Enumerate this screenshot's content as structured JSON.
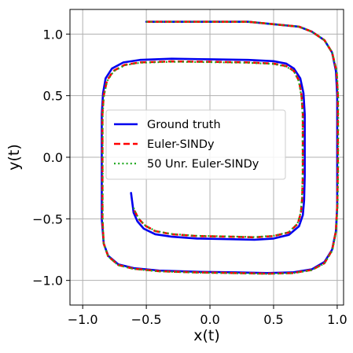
{
  "chart_data": {
    "type": "line",
    "title": "",
    "xlabel": "x(t)",
    "ylabel": "y(t)",
    "xlim": [
      -1.1,
      1.05
    ],
    "ylim": [
      -1.2,
      1.2
    ],
    "xticks": [
      -1.0,
      -0.5,
      0.0,
      0.5,
      1.0
    ],
    "yticks": [
      -1.0,
      -0.5,
      0.0,
      0.5,
      1.0
    ],
    "xtick_labels": [
      "−1.0",
      "−0.5",
      "0.0",
      "0.5",
      "1.0"
    ],
    "ytick_labels": [
      "−1.0",
      "−0.5",
      "0.0",
      "0.5",
      "1.0"
    ],
    "grid": true,
    "legend_position": "center-left",
    "series": [
      {
        "name": "Ground truth",
        "color": "#0000ee",
        "style": "solid",
        "points": [
          [
            -0.5,
            1.1
          ],
          [
            -0.3,
            1.1
          ],
          [
            0.0,
            1.1
          ],
          [
            0.3,
            1.1
          ],
          [
            0.5,
            1.08
          ],
          [
            0.7,
            1.06
          ],
          [
            0.8,
            1.02
          ],
          [
            0.9,
            0.95
          ],
          [
            0.96,
            0.85
          ],
          [
            0.99,
            0.7
          ],
          [
            1.0,
            0.5
          ],
          [
            1.0,
            0.2
          ],
          [
            1.0,
            -0.1
          ],
          [
            1.0,
            -0.4
          ],
          [
            0.99,
            -0.6
          ],
          [
            0.96,
            -0.75
          ],
          [
            0.9,
            -0.85
          ],
          [
            0.8,
            -0.91
          ],
          [
            0.65,
            -0.935
          ],
          [
            0.45,
            -0.94
          ],
          [
            0.2,
            -0.935
          ],
          [
            -0.1,
            -0.93
          ],
          [
            -0.4,
            -0.92
          ],
          [
            -0.6,
            -0.9
          ],
          [
            -0.72,
            -0.87
          ],
          [
            -0.8,
            -0.8
          ],
          [
            -0.835,
            -0.7
          ],
          [
            -0.85,
            -0.5
          ],
          [
            -0.85,
            -0.2
          ],
          [
            -0.85,
            0.1
          ],
          [
            -0.85,
            0.35
          ],
          [
            -0.84,
            0.52
          ],
          [
            -0.82,
            0.64
          ],
          [
            -0.77,
            0.72
          ],
          [
            -0.68,
            0.77
          ],
          [
            -0.55,
            0.79
          ],
          [
            -0.3,
            0.8
          ],
          [
            0.0,
            0.795
          ],
          [
            0.3,
            0.79
          ],
          [
            0.5,
            0.78
          ],
          [
            0.6,
            0.76
          ],
          [
            0.66,
            0.72
          ],
          [
            0.71,
            0.64
          ],
          [
            0.735,
            0.52
          ],
          [
            0.745,
            0.35
          ],
          [
            0.745,
            0.1
          ],
          [
            0.745,
            -0.15
          ],
          [
            0.74,
            -0.35
          ],
          [
            0.73,
            -0.47
          ],
          [
            0.7,
            -0.56
          ],
          [
            0.62,
            -0.63
          ],
          [
            0.5,
            -0.66
          ],
          [
            0.35,
            -0.67
          ],
          [
            0.15,
            -0.665
          ],
          [
            -0.1,
            -0.66
          ],
          [
            -0.3,
            -0.645
          ],
          [
            -0.43,
            -0.625
          ],
          [
            -0.52,
            -0.58
          ],
          [
            -0.57,
            -0.52
          ],
          [
            -0.6,
            -0.45
          ],
          [
            -0.61,
            -0.37
          ],
          [
            -0.62,
            -0.29
          ]
        ]
      },
      {
        "name": "Euler-SINDy",
        "color": "#ff0000",
        "style": "dashed",
        "points": [
          [
            -0.5,
            1.1
          ],
          [
            -0.3,
            1.1
          ],
          [
            0.0,
            1.1
          ],
          [
            0.3,
            1.1
          ],
          [
            0.5,
            1.08
          ],
          [
            0.7,
            1.06
          ],
          [
            0.8,
            1.02
          ],
          [
            0.9,
            0.95
          ],
          [
            0.96,
            0.85
          ],
          [
            0.995,
            0.7
          ],
          [
            1.005,
            0.5
          ],
          [
            1.005,
            0.2
          ],
          [
            1.005,
            -0.1
          ],
          [
            1.0,
            -0.4
          ],
          [
            0.99,
            -0.6
          ],
          [
            0.96,
            -0.755
          ],
          [
            0.9,
            -0.86
          ],
          [
            0.8,
            -0.915
          ],
          [
            0.65,
            -0.94
          ],
          [
            0.45,
            -0.945
          ],
          [
            0.2,
            -0.94
          ],
          [
            -0.1,
            -0.935
          ],
          [
            -0.4,
            -0.925
          ],
          [
            -0.6,
            -0.905
          ],
          [
            -0.72,
            -0.875
          ],
          [
            -0.8,
            -0.805
          ],
          [
            -0.835,
            -0.7
          ],
          [
            -0.845,
            -0.5
          ],
          [
            -0.845,
            -0.2
          ],
          [
            -0.845,
            0.1
          ],
          [
            -0.845,
            0.35
          ],
          [
            -0.835,
            0.5
          ],
          [
            -0.81,
            0.62
          ],
          [
            -0.76,
            0.7
          ],
          [
            -0.67,
            0.75
          ],
          [
            -0.55,
            0.77
          ],
          [
            -0.3,
            0.778
          ],
          [
            0.0,
            0.775
          ],
          [
            0.3,
            0.77
          ],
          [
            0.5,
            0.76
          ],
          [
            0.6,
            0.74
          ],
          [
            0.66,
            0.7
          ],
          [
            0.7,
            0.62
          ],
          [
            0.72,
            0.5
          ],
          [
            0.73,
            0.35
          ],
          [
            0.73,
            0.1
          ],
          [
            0.73,
            -0.15
          ],
          [
            0.725,
            -0.33
          ],
          [
            0.715,
            -0.45
          ],
          [
            0.69,
            -0.54
          ],
          [
            0.62,
            -0.61
          ],
          [
            0.5,
            -0.64
          ],
          [
            0.35,
            -0.65
          ],
          [
            0.15,
            -0.645
          ],
          [
            -0.1,
            -0.64
          ],
          [
            -0.3,
            -0.625
          ],
          [
            -0.43,
            -0.6
          ],
          [
            -0.51,
            -0.555
          ],
          [
            -0.56,
            -0.5
          ],
          [
            -0.585,
            -0.45
          ],
          [
            -0.6,
            -0.42
          ]
        ]
      },
      {
        "name": "50 Unr. Euler-SINDy",
        "color": "#22aa22",
        "style": "dotted",
        "points": [
          [
            -0.5,
            1.1
          ],
          [
            -0.3,
            1.1
          ],
          [
            0.0,
            1.1
          ],
          [
            0.3,
            1.1
          ],
          [
            0.5,
            1.08
          ],
          [
            0.7,
            1.06
          ],
          [
            0.8,
            1.02
          ],
          [
            0.9,
            0.95
          ],
          [
            0.96,
            0.85
          ],
          [
            0.997,
            0.7
          ],
          [
            1.008,
            0.5
          ],
          [
            1.008,
            0.2
          ],
          [
            1.008,
            -0.1
          ],
          [
            1.003,
            -0.4
          ],
          [
            0.992,
            -0.6
          ],
          [
            0.962,
            -0.757
          ],
          [
            0.9,
            -0.862
          ],
          [
            0.8,
            -0.917
          ],
          [
            0.65,
            -0.942
          ],
          [
            0.45,
            -0.947
          ],
          [
            0.2,
            -0.942
          ],
          [
            -0.1,
            -0.937
          ],
          [
            -0.4,
            -0.927
          ],
          [
            -0.6,
            -0.907
          ],
          [
            -0.72,
            -0.877
          ],
          [
            -0.8,
            -0.806
          ],
          [
            -0.835,
            -0.7
          ],
          [
            -0.843,
            -0.5
          ],
          [
            -0.843,
            -0.2
          ],
          [
            -0.843,
            0.1
          ],
          [
            -0.843,
            0.35
          ],
          [
            -0.833,
            0.5
          ],
          [
            -0.808,
            0.617
          ],
          [
            -0.758,
            0.697
          ],
          [
            -0.668,
            0.747
          ],
          [
            -0.55,
            0.767
          ],
          [
            -0.3,
            0.775
          ],
          [
            0.0,
            0.772
          ],
          [
            0.3,
            0.767
          ],
          [
            0.5,
            0.757
          ],
          [
            0.6,
            0.737
          ],
          [
            0.66,
            0.697
          ],
          [
            0.698,
            0.617
          ],
          [
            0.718,
            0.497
          ],
          [
            0.728,
            0.35
          ],
          [
            0.728,
            0.1
          ],
          [
            0.728,
            -0.15
          ],
          [
            0.723,
            -0.33
          ],
          [
            0.713,
            -0.45
          ],
          [
            0.688,
            -0.538
          ],
          [
            0.62,
            -0.608
          ],
          [
            0.5,
            -0.638
          ],
          [
            0.35,
            -0.648
          ],
          [
            0.15,
            -0.643
          ],
          [
            -0.1,
            -0.638
          ],
          [
            -0.3,
            -0.623
          ],
          [
            -0.43,
            -0.598
          ],
          [
            -0.51,
            -0.553
          ],
          [
            -0.56,
            -0.498
          ],
          [
            -0.585,
            -0.448
          ],
          [
            -0.6,
            -0.41
          ]
        ]
      }
    ]
  }
}
